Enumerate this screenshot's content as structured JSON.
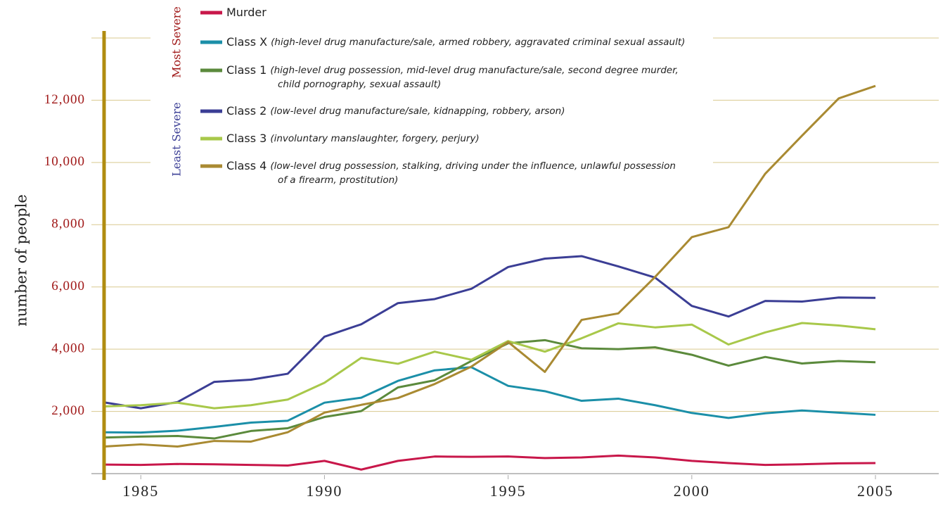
{
  "chart_data": {
    "type": "line",
    "y_label": "number of people",
    "severity_labels": {
      "most": "Most Severe",
      "least": "Least Severe"
    },
    "x": [
      1984,
      1985,
      1986,
      1987,
      1988,
      1989,
      1990,
      1991,
      1992,
      1993,
      1994,
      1995,
      1996,
      1997,
      1998,
      1999,
      2000,
      2001,
      2002,
      2003,
      2004,
      2005
    ],
    "xlim": [
      1984,
      2005
    ],
    "xticks": [
      1985,
      1990,
      1995,
      2000,
      2005
    ],
    "ylim": [
      0,
      14000
    ],
    "yticks": [
      {
        "value": 2000,
        "label": "2,000"
      },
      {
        "value": 4000,
        "label": "4,000"
      },
      {
        "value": 6000,
        "label": "6,000"
      },
      {
        "value": 8000,
        "label": "8,000"
      },
      {
        "value": 10000,
        "label": "10,000"
      },
      {
        "value": 12000,
        "label": "12,000"
      }
    ],
    "grid": true,
    "series": [
      {
        "name": "Murder",
        "color": "#c8174a",
        "values": [
          290,
          280,
          310,
          300,
          280,
          260,
          410,
          130,
          410,
          550,
          540,
          550,
          500,
          520,
          580,
          520,
          410,
          340,
          280,
          300,
          330,
          340
        ]
      },
      {
        "name": "Class X",
        "color": "#1b8fa8",
        "description": [
          "(high-level drug manufacture/sale, armed robbery, aggravated criminal sexual assault)"
        ],
        "values": [
          1330,
          1320,
          1380,
          1500,
          1640,
          1700,
          2280,
          2440,
          2980,
          3320,
          3420,
          2820,
          2650,
          2340,
          2410,
          2200,
          1950,
          1790,
          1940,
          2030,
          1960,
          1890
        ]
      },
      {
        "name": "Class 1",
        "color": "#5b8a3c",
        "description": [
          "(high-level drug possession, mid-level drug manufacture/sale, second degree murder,",
          "child pornography, sexual assault)"
        ],
        "values": [
          1160,
          1190,
          1210,
          1130,
          1370,
          1460,
          1820,
          2010,
          2770,
          3000,
          3620,
          4190,
          4290,
          4030,
          4000,
          4060,
          3820,
          3470,
          3750,
          3540,
          3620,
          3580
        ]
      },
      {
        "name": "Class 2",
        "color": "#3b3e95",
        "description": [
          "(low-level drug manufacture/sale, kidnapping, robbery, arson)"
        ],
        "values": [
          2290,
          2100,
          2300,
          2950,
          3020,
          3210,
          4400,
          4800,
          5480,
          5610,
          5940,
          6640,
          6910,
          6990,
          6660,
          6300,
          5390,
          5050,
          5550,
          5530,
          5660,
          5650
        ]
      },
      {
        "name": "Class 3",
        "color": "#a8c84a",
        "description": [
          "(involuntary manslaughter, forgery, perjury)"
        ],
        "values": [
          2160,
          2200,
          2280,
          2100,
          2200,
          2380,
          2920,
          3720,
          3530,
          3920,
          3660,
          4260,
          3920,
          4350,
          4830,
          4700,
          4790,
          4150,
          4540,
          4840,
          4760,
          4640
        ]
      },
      {
        "name": "Class 4",
        "color": "#a98a32",
        "description": [
          "(low-level drug possession, stalking, driving under the influence, unlawful possession",
          "of a firearm, prostitution)"
        ],
        "values": [
          870,
          940,
          870,
          1050,
          1030,
          1330,
          1960,
          2210,
          2430,
          2880,
          3440,
          4230,
          3270,
          4940,
          5150,
          6320,
          7600,
          7920,
          9640,
          10860,
          12060,
          12460
        ]
      }
    ]
  }
}
